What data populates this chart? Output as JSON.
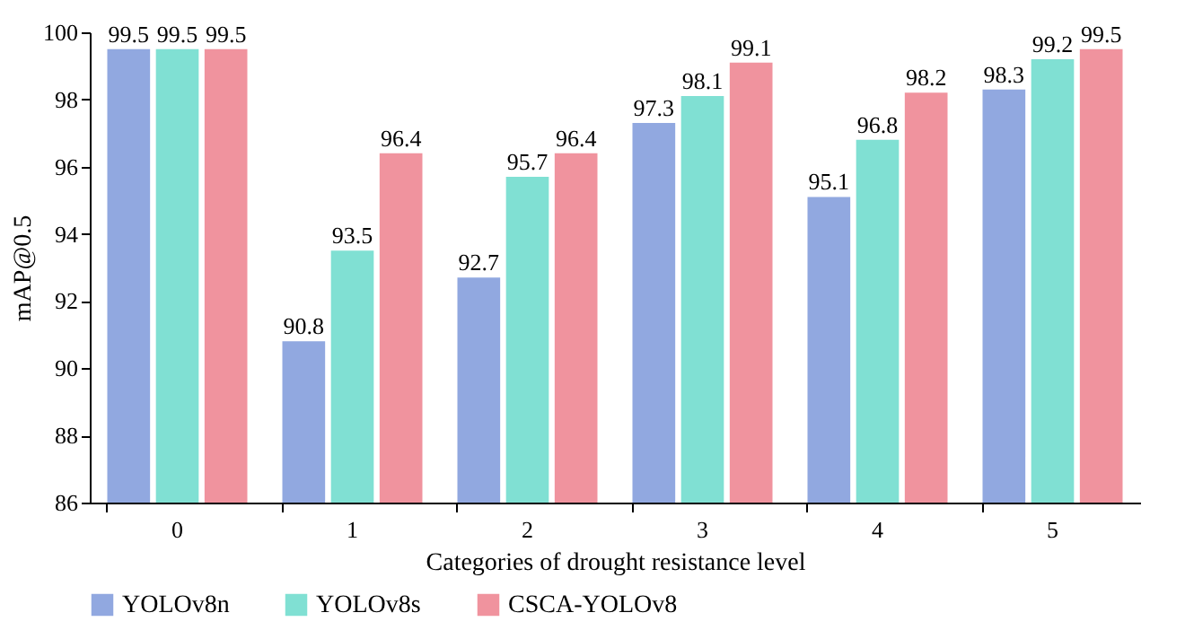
{
  "chart_data": {
    "type": "bar",
    "xlabel": "Categories of drought resistance level",
    "ylabel": "mAP@0.5",
    "categories": [
      "0",
      "1",
      "2",
      "3",
      "4",
      "5"
    ],
    "series": [
      {
        "name": "YOLOv8n",
        "color": "#91a8e0",
        "values": [
          99.5,
          90.8,
          92.7,
          97.3,
          95.1,
          98.3
        ]
      },
      {
        "name": "YOLOv8s",
        "color": "#80e0d3",
        "values": [
          99.5,
          93.5,
          95.7,
          98.1,
          96.8,
          99.2
        ]
      },
      {
        "name": "CSCA-YOLOv8",
        "color": "#f0939e",
        "values": [
          99.5,
          96.4,
          96.4,
          99.1,
          98.2,
          99.5
        ]
      }
    ],
    "ylim": [
      86,
      100
    ],
    "yticks": [
      86,
      88,
      90,
      92,
      94,
      96,
      98,
      100
    ],
    "grid": false,
    "legend": "bottom",
    "data_labels": true
  }
}
